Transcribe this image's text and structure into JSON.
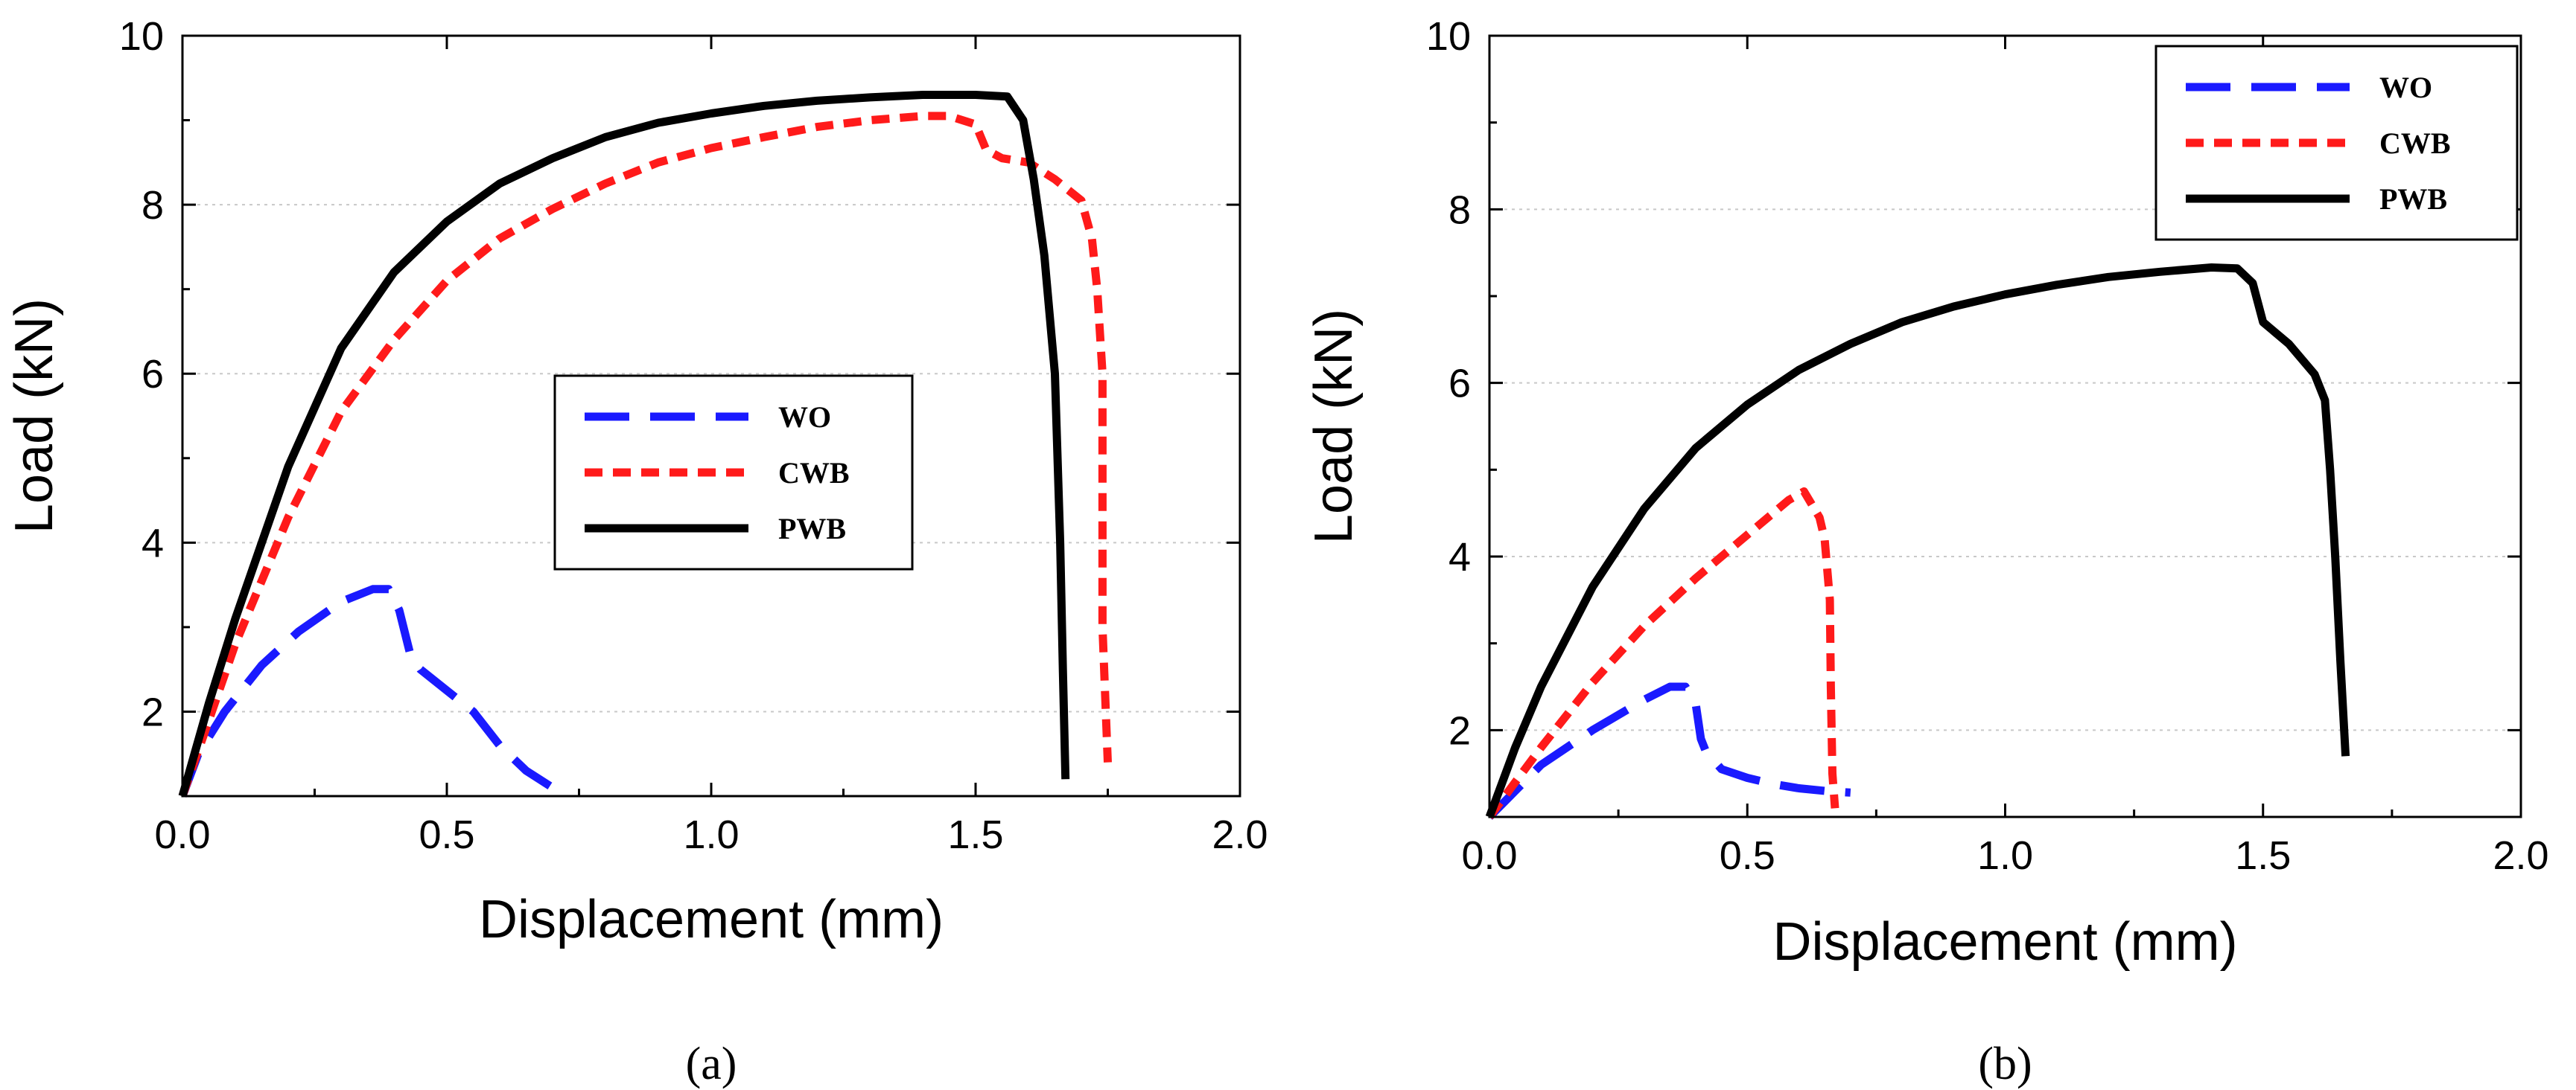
{
  "chart_data": [
    {
      "type": "line",
      "panel_id": "a",
      "caption": "(a)",
      "xlabel": "Displacement (mm)",
      "ylabel": "Load (kN)",
      "xlim": [
        0.0,
        2.0
      ],
      "ylim": [
        1.0,
        10.0
      ],
      "xticks": [
        0.0,
        0.5,
        1.0,
        1.5,
        2.0
      ],
      "xtick_labels": [
        "0.0",
        "0.5",
        "1.0",
        "1.5",
        "2.0"
      ],
      "yticks": [
        2,
        4,
        6,
        8,
        10
      ],
      "ytick_labels": [
        "2",
        "4",
        "6",
        "8",
        "10"
      ],
      "grid": "horizontal-dotted",
      "legend_position": "center-right",
      "series": [
        {
          "name": "WO",
          "color": "#1a1aff",
          "style": "long-dash",
          "x": [
            0.0,
            0.03,
            0.08,
            0.15,
            0.22,
            0.3,
            0.36,
            0.39,
            0.41,
            0.43,
            0.45,
            0.5,
            0.55,
            0.6,
            0.65,
            0.7,
            0.72
          ],
          "y": [
            1.0,
            1.5,
            2.0,
            2.55,
            2.95,
            3.3,
            3.45,
            3.45,
            3.2,
            2.7,
            2.5,
            2.25,
            2.0,
            1.6,
            1.3,
            1.1,
            1.05
          ]
        },
        {
          "name": "CWB",
          "color": "#ff1a1a",
          "style": "short-dash",
          "x": [
            0.0,
            0.05,
            0.1,
            0.2,
            0.3,
            0.4,
            0.5,
            0.6,
            0.7,
            0.8,
            0.9,
            1.0,
            1.1,
            1.2,
            1.3,
            1.4,
            1.45,
            1.5,
            1.52,
            1.55,
            1.6,
            1.65,
            1.7,
            1.72,
            1.73,
            1.74,
            1.74,
            1.75
          ],
          "y": [
            1.0,
            1.9,
            2.8,
            4.3,
            5.55,
            6.4,
            7.1,
            7.6,
            7.95,
            8.25,
            8.5,
            8.67,
            8.8,
            8.92,
            9.0,
            9.05,
            9.05,
            8.95,
            8.65,
            8.55,
            8.5,
            8.3,
            8.05,
            7.6,
            7.0,
            6.0,
            3.0,
            1.4
          ]
        },
        {
          "name": "PWB",
          "color": "#000000",
          "style": "solid",
          "x": [
            0.0,
            0.05,
            0.1,
            0.2,
            0.3,
            0.4,
            0.5,
            0.6,
            0.7,
            0.8,
            0.9,
            1.0,
            1.1,
            1.2,
            1.3,
            1.4,
            1.5,
            1.56,
            1.59,
            1.61,
            1.63,
            1.65,
            1.66,
            1.665,
            1.67
          ],
          "y": [
            1.0,
            2.1,
            3.1,
            4.9,
            6.3,
            7.2,
            7.8,
            8.25,
            8.55,
            8.8,
            8.97,
            9.08,
            9.17,
            9.23,
            9.27,
            9.3,
            9.3,
            9.28,
            9.0,
            8.3,
            7.4,
            6.0,
            4.0,
            2.5,
            1.2
          ]
        }
      ]
    },
    {
      "type": "line",
      "panel_id": "b",
      "caption": "(b)",
      "xlabel": "Displacement (mm)",
      "ylabel": "Load (kN)",
      "xlim": [
        0.0,
        2.0
      ],
      "ylim": [
        1.0,
        10.0
      ],
      "xticks": [
        0.0,
        0.5,
        1.0,
        1.5,
        2.0
      ],
      "xtick_labels": [
        "0.0",
        "0.5",
        "1.0",
        "1.5",
        "2.0"
      ],
      "yticks": [
        2,
        4,
        6,
        8,
        10
      ],
      "ytick_labels": [
        "2",
        "4",
        "6",
        "8",
        "10"
      ],
      "grid": "horizontal-dotted",
      "legend_position": "top-right",
      "series": [
        {
          "name": "WO",
          "color": "#1a1aff",
          "style": "long-dash",
          "x": [
            0.0,
            0.05,
            0.1,
            0.2,
            0.3,
            0.35,
            0.38,
            0.4,
            0.41,
            0.42,
            0.45,
            0.5,
            0.55,
            0.6,
            0.65,
            0.7
          ],
          "y": [
            1.0,
            1.3,
            1.6,
            2.0,
            2.35,
            2.5,
            2.5,
            2.3,
            1.9,
            1.75,
            1.55,
            1.45,
            1.38,
            1.33,
            1.3,
            1.28
          ]
        },
        {
          "name": "CWB",
          "color": "#ff1a1a",
          "style": "short-dash",
          "x": [
            0.0,
            0.05,
            0.1,
            0.2,
            0.3,
            0.4,
            0.5,
            0.58,
            0.61,
            0.64,
            0.65,
            0.66,
            0.662,
            0.665,
            0.67
          ],
          "y": [
            1.0,
            1.4,
            1.8,
            2.55,
            3.2,
            3.75,
            4.25,
            4.65,
            4.75,
            4.45,
            4.2,
            3.5,
            2.5,
            1.5,
            1.1
          ]
        },
        {
          "name": "PWB",
          "color": "#000000",
          "style": "solid",
          "x": [
            0.0,
            0.05,
            0.1,
            0.2,
            0.3,
            0.4,
            0.5,
            0.6,
            0.7,
            0.8,
            0.9,
            1.0,
            1.1,
            1.2,
            1.3,
            1.4,
            1.45,
            1.48,
            1.5,
            1.55,
            1.6,
            1.62,
            1.63,
            1.64,
            1.65,
            1.66
          ],
          "y": [
            1.0,
            1.8,
            2.5,
            3.65,
            4.55,
            5.25,
            5.75,
            6.15,
            6.45,
            6.7,
            6.88,
            7.02,
            7.13,
            7.22,
            7.28,
            7.33,
            7.32,
            7.15,
            6.7,
            6.45,
            6.1,
            5.8,
            5.0,
            4.0,
            2.8,
            1.7
          ]
        }
      ]
    }
  ]
}
